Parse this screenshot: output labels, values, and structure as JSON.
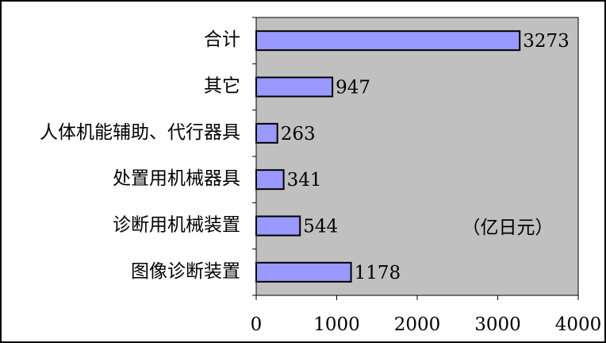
{
  "chart_data": {
    "type": "bar",
    "orientation": "horizontal",
    "categories": [
      "合计",
      "其它",
      "人体机能辅助、代行器具",
      "处置用机械器具",
      "诊断用机械装置",
      "图像诊断装置"
    ],
    "values": [
      3273,
      947,
      263,
      341,
      544,
      1178
    ],
    "color": "#9999ff",
    "xlim": [
      0,
      4000
    ],
    "xticks": [
      0,
      1000,
      2000,
      3000,
      4000
    ],
    "annotation": "（亿日元）",
    "plot_background": "#c0c0c0"
  }
}
